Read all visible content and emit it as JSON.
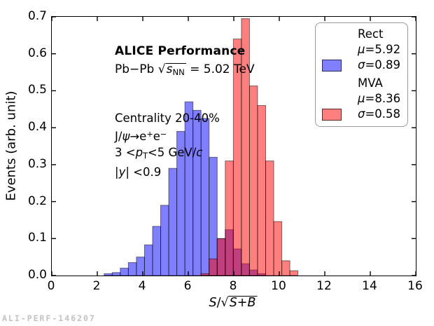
{
  "watermark": "ALI-PERF-146207",
  "annotations": {
    "alice": "ALICE Performance",
    "system": {
      "prefix": "Pb−Pb ",
      "sqrt": "√",
      "s": "s",
      "sub": "NN",
      "suffix": " = 5.02 TeV"
    },
    "centrality": "Centrality 20-40%",
    "decay": {
      "pre": "J/",
      "psi": "ψ",
      "arrow": "→",
      "e1": "e",
      "plus": "+",
      "e2": "e",
      "minus": "−"
    },
    "pt": {
      "pre": "3 <",
      "p": "p",
      "sub": "T",
      "mid": "<5 GeV/",
      "c": "c"
    },
    "rapidity": {
      "bar1": "|",
      "y": "y",
      "bar2": "|",
      "post": " <0.9"
    }
  },
  "legend": {
    "entries": [
      {
        "name": "Rect",
        "mu_sym": "μ",
        "mu": "=5.92",
        "sigma_sym": "σ",
        "sigma": "=0.89",
        "color": "#0000ff"
      },
      {
        "name": "MVA",
        "mu_sym": "μ",
        "mu": "=8.36",
        "sigma_sym": "σ",
        "sigma": "=0.58",
        "color": "#ff0000"
      }
    ]
  },
  "axes": {
    "x": {
      "min": 0,
      "max": 16,
      "ticks": [
        "0",
        "2",
        "4",
        "6",
        "8",
        "10",
        "12",
        "14",
        "16"
      ],
      "label": {
        "s": "S",
        "slash": "/",
        "sqrt": "√",
        "inner_s": "S",
        "plus": "+",
        "b": "B"
      }
    },
    "y": {
      "min": 0.0,
      "max": 0.7,
      "ticks": [
        "0.0",
        "0.1",
        "0.2",
        "0.3",
        "0.4",
        "0.5",
        "0.6",
        "0.7"
      ],
      "label": "Events (arb. unit)"
    }
  },
  "chart_data": {
    "type": "bar",
    "subtype": "overlaid-histograms",
    "title": "",
    "xlabel": "S/sqrt(S+B)",
    "ylabel": "Events (arb. unit)",
    "xlim": [
      0,
      16
    ],
    "ylim": [
      0,
      0.7
    ],
    "grid": false,
    "legend_position": "upper right",
    "bin_width": 0.355,
    "series": [
      {
        "name": "Rect",
        "color": "#0000ff",
        "fill_opacity": 0.5,
        "mu": 5.92,
        "sigma": 0.89,
        "bin_start": 2.3,
        "heights": [
          0.005,
          0.008,
          0.02,
          0.035,
          0.05,
          0.083,
          0.133,
          0.19,
          0.29,
          0.39,
          0.47,
          0.447,
          0.425,
          0.32,
          0.1,
          0.124,
          0.072,
          0.032,
          0.015,
          0.005
        ]
      },
      {
        "name": "MVA",
        "color": "#ff0000",
        "fill_opacity": 0.5,
        "mu": 8.36,
        "sigma": 0.58,
        "bin_start": 6.56,
        "heights": [
          0.005,
          0.045,
          0.1,
          0.31,
          0.64,
          0.695,
          0.513,
          0.46,
          0.31,
          0.146,
          0.04,
          0.013
        ]
      }
    ]
  }
}
